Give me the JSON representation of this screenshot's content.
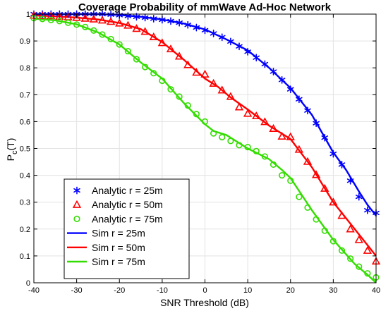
{
  "chart_data": {
    "type": "line",
    "title": "Coverage Probability of mmWave Ad-Hoc Network",
    "xlabel": "SNR Threshold (dB)",
    "ylabel_main": "P",
    "ylabel_sub": "c",
    "ylabel_tail": "(T)",
    "xlim": [
      -40,
      40
    ],
    "ylim": [
      0,
      1
    ],
    "xticks": [
      -40,
      -30,
      -20,
      -10,
      0,
      10,
      20,
      30,
      40
    ],
    "yticks": [
      0,
      0.1,
      0.2,
      0.3,
      0.4,
      0.5,
      0.6,
      0.7,
      0.8,
      0.9,
      1
    ],
    "xtick_labels": [
      "-40",
      "-30",
      "-20",
      "-10",
      "0",
      "10",
      "20",
      "30",
      "40"
    ],
    "ytick_labels": [
      "0",
      "0.1",
      "0.2",
      "0.3",
      "0.4",
      "0.5",
      "0.6",
      "0.7",
      "0.8",
      "0.9",
      "1"
    ],
    "grid": true,
    "legend_position": "bottom-left",
    "series": [
      {
        "name": "Analytic r = 25m",
        "kind": "marker",
        "marker": "asterisk",
        "color": "#0000ff",
        "x": [
          -40,
          -38,
          -36,
          -34,
          -32,
          -30,
          -28,
          -26,
          -24,
          -22,
          -20,
          -18,
          -16,
          -14,
          -12,
          -10,
          -8,
          -6,
          -4,
          -2,
          0,
          2,
          4,
          6,
          8,
          10,
          12,
          14,
          16,
          18,
          20,
          22,
          24,
          26,
          28,
          30,
          32,
          34,
          36,
          38,
          40
        ],
        "y": [
          1.0,
          1.0,
          1.0,
          1.0,
          1.0,
          1.0,
          1.0,
          1.0,
          1.0,
          0.998,
          0.996,
          0.993,
          0.99,
          0.987,
          0.983,
          0.979,
          0.974,
          0.968,
          0.96,
          0.95,
          0.94,
          0.928,
          0.914,
          0.898,
          0.88,
          0.86,
          0.838,
          0.814,
          0.786,
          0.755,
          0.72,
          0.683,
          0.641,
          0.594,
          0.54,
          0.48,
          0.44,
          0.38,
          0.32,
          0.27,
          0.26
        ]
      },
      {
        "name": "Analytic r = 50m",
        "kind": "marker",
        "marker": "triangle",
        "color": "#ff0000",
        "x": [
          -40,
          -38,
          -36,
          -34,
          -32,
          -30,
          -28,
          -26,
          -24,
          -22,
          -20,
          -18,
          -16,
          -14,
          -12,
          -10,
          -8,
          -6,
          -4,
          -2,
          0,
          2,
          4,
          6,
          8,
          10,
          12,
          14,
          16,
          18,
          20,
          22,
          24,
          26,
          28,
          30,
          32,
          34,
          36,
          38,
          40
        ],
        "y": [
          0.995,
          0.994,
          0.993,
          0.991,
          0.989,
          0.987,
          0.984,
          0.981,
          0.977,
          0.972,
          0.966,
          0.958,
          0.946,
          0.935,
          0.915,
          0.893,
          0.87,
          0.843,
          0.811,
          0.783,
          0.776,
          0.742,
          0.717,
          0.693,
          0.654,
          0.63,
          0.621,
          0.599,
          0.574,
          0.545,
          0.543,
          0.496,
          0.451,
          0.402,
          0.351,
          0.3,
          0.25,
          0.2,
          0.16,
          0.12,
          0.08
        ]
      },
      {
        "name": "Analytic r = 75m",
        "kind": "marker",
        "marker": "circle",
        "color": "#33dd00",
        "x": [
          -40,
          -38,
          -36,
          -34,
          -32,
          -30,
          -28,
          -26,
          -24,
          -22,
          -20,
          -18,
          -16,
          -14,
          -12,
          -10,
          -8,
          -6,
          -4,
          -2,
          0,
          2,
          4,
          6,
          8,
          10,
          12,
          14,
          16,
          18,
          20,
          22,
          24,
          26,
          28,
          30,
          32,
          34,
          36,
          38,
          40
        ],
        "y": [
          0.985,
          0.982,
          0.978,
          0.974,
          0.968,
          0.961,
          0.952,
          0.939,
          0.924,
          0.907,
          0.887,
          0.862,
          0.832,
          0.803,
          0.78,
          0.752,
          0.72,
          0.693,
          0.66,
          0.628,
          0.6,
          0.556,
          0.542,
          0.528,
          0.512,
          0.505,
          0.49,
          0.47,
          0.44,
          0.4,
          0.38,
          0.32,
          0.28,
          0.236,
          0.194,
          0.155,
          0.12,
          0.09,
          0.06,
          0.035,
          0.02
        ]
      },
      {
        "name": "Sim r = 25m",
        "kind": "line",
        "color": "#0000ff",
        "x": [
          -40,
          -35,
          -30,
          -25,
          -20,
          -15,
          -10,
          -5,
          0,
          5,
          10,
          15,
          20,
          25,
          30,
          33,
          36,
          38,
          40
        ],
        "y": [
          1.0,
          1.0,
          1.0,
          1.0,
          0.997,
          0.99,
          0.98,
          0.965,
          0.943,
          0.906,
          0.865,
          0.8,
          0.725,
          0.625,
          0.485,
          0.42,
          0.34,
          0.29,
          0.25
        ]
      },
      {
        "name": "Sim r = 50m",
        "kind": "line",
        "color": "#ff0000",
        "x": [
          -40,
          -35,
          -30,
          -25,
          -20,
          -15,
          -10,
          -5,
          0,
          3,
          6,
          10,
          15,
          20,
          25,
          30,
          35,
          38,
          40
        ],
        "y": [
          0.995,
          0.992,
          0.987,
          0.98,
          0.967,
          0.944,
          0.896,
          0.831,
          0.76,
          0.73,
          0.69,
          0.645,
          0.585,
          0.535,
          0.43,
          0.3,
          0.2,
          0.14,
          0.1
        ]
      },
      {
        "name": "Sim r = 75m",
        "kind": "line",
        "color": "#33dd00",
        "x": [
          -40,
          -35,
          -30,
          -25,
          -20,
          -15,
          -10,
          -5,
          0,
          2,
          5,
          10,
          15,
          18,
          20,
          25,
          30,
          35,
          38,
          40
        ],
        "y": [
          0.983,
          0.977,
          0.962,
          0.932,
          0.887,
          0.82,
          0.76,
          0.67,
          0.59,
          0.565,
          0.55,
          0.5,
          0.46,
          0.42,
          0.39,
          0.27,
          0.16,
          0.07,
          0.03,
          0.0
        ]
      }
    ]
  }
}
